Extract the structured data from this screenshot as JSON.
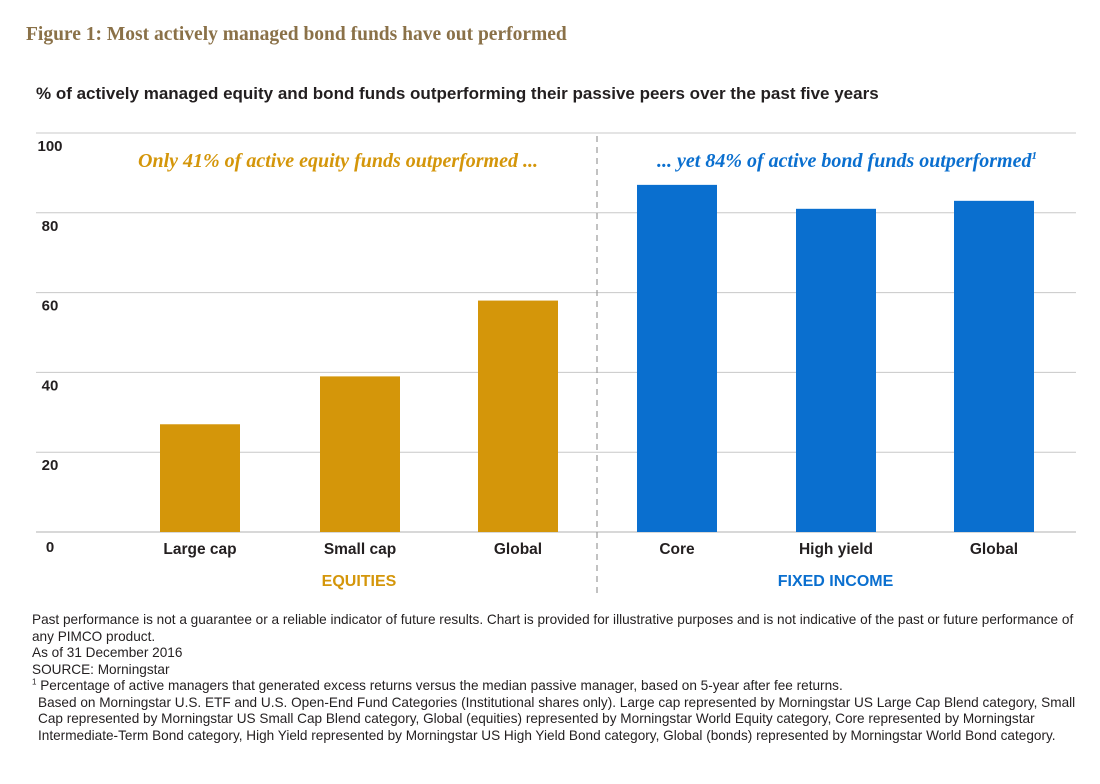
{
  "figure_title": "Figure 1: Most actively managed bond funds have out performed",
  "colors": {
    "equity": "#d4960a",
    "fixed_income": "#0a6fcf",
    "title": "#8a7148",
    "grid": "#c8c8c8",
    "divider": "#9a9a9a"
  },
  "chart_data": {
    "type": "bar",
    "title": "% of actively managed equity and bond funds outperforming their passive peers over the past five years",
    "xlabel": "",
    "ylabel": "",
    "ylim": [
      0,
      100
    ],
    "yticks": [
      0,
      20,
      40,
      60,
      80,
      100
    ],
    "grid": true,
    "categories": [
      "Large cap",
      "Small cap",
      "Global",
      "Core",
      "High yield",
      "Global"
    ],
    "values": [
      27,
      39,
      58,
      87,
      81,
      83
    ],
    "groups": [
      {
        "name": "EQUITIES",
        "annotation": "Only 41% of active equity funds outperformed ...",
        "footnote_mark": "",
        "start": 0,
        "end": 3
      },
      {
        "name": "FIXED INCOME",
        "annotation": "... yet 84% of active bond funds outperformed",
        "footnote_mark": "1",
        "start": 3,
        "end": 6
      }
    ]
  },
  "notes": {
    "disclaimer": "Past performance is not a guarantee or a reliable indicator of future results. Chart is provided for illustrative purposes and is not indicative of the past or future performance of any PIMCO product.",
    "as_of": "As of 31 December 2016",
    "source": "SOURCE: Morningstar",
    "footnote_mark": "1",
    "footnote": "Percentage of active managers that generated excess returns versus the median passive manager, based on 5-year after fee returns.",
    "methodology": "Based on Morningstar U.S. ETF and U.S. Open-End Fund Categories (Institutional shares only). Large cap represented by Morningstar US Large Cap Blend category, Small Cap represented by Morningstar US Small Cap Blend category, Global (equities) represented by Morningstar World Equity category, Core represented by Morningstar Intermediate-Term Bond category, High Yield represented by Morningstar US High Yield Bond category, Global (bonds) represented by Morningstar World Bond category."
  }
}
